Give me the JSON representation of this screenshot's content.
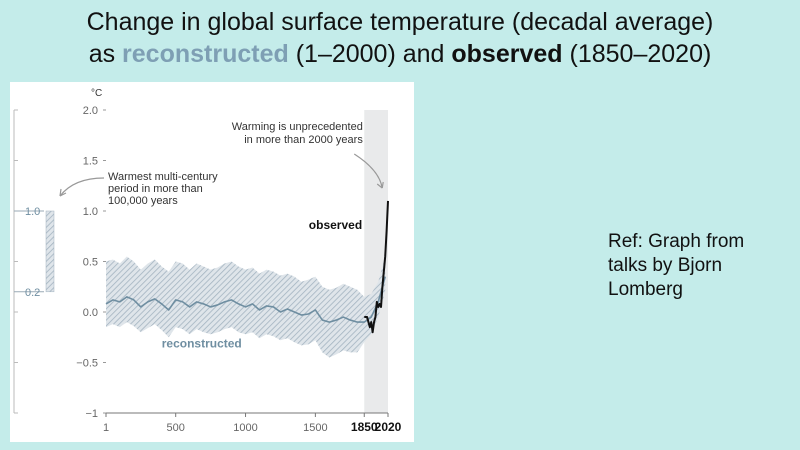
{
  "slide": {
    "title_line1": "Change in global surface temperature (decadal average)",
    "title_line2_prefix": "as ",
    "title_reconstructed": "reconstructed",
    "title_line2_mid": " (1–2000) and ",
    "title_observed": "observed",
    "title_line2_suffix": " (1850–2020)",
    "reference": "Ref: Graph from talks by Bjorn Lomberg"
  },
  "colors": {
    "background": "#c4ecea",
    "reconstructed": "#6f8ea1",
    "band": "#a9b8c4",
    "observed": "#111111",
    "recent_shade": "#e9eaeb",
    "axis_text": "#666666"
  },
  "chart_data": {
    "type": "line",
    "ylabel": "°C",
    "ylim": [
      -1,
      2
    ],
    "xlim": [
      1,
      2020
    ],
    "ytick_labels": [
      "2.0",
      "1.5",
      "1.0",
      "0.5",
      "0.0",
      "−0.5",
      "−1"
    ],
    "ytick_values": [
      2.0,
      1.5,
      1.0,
      0.5,
      0.0,
      -0.5,
      -1
    ],
    "xtick_labels": [
      "1",
      "500",
      "1000",
      "1500",
      "1850",
      "2020"
    ],
    "xtick_values": [
      1,
      500,
      1000,
      1500,
      1850,
      2020
    ],
    "bold_xticks": [
      "1850",
      "2020"
    ],
    "shaded_period": [
      1850,
      2020
    ],
    "series": [
      {
        "name": "reconstructed",
        "x": [
          1,
          50,
          100,
          150,
          200,
          250,
          300,
          350,
          400,
          450,
          500,
          550,
          600,
          650,
          700,
          750,
          800,
          850,
          900,
          950,
          1000,
          1050,
          1100,
          1150,
          1200,
          1250,
          1300,
          1350,
          1400,
          1450,
          1500,
          1550,
          1600,
          1650,
          1700,
          1750,
          1800,
          1850,
          1900,
          1950,
          2000
        ],
        "values": [
          0.08,
          0.12,
          0.1,
          0.15,
          0.12,
          0.05,
          0.1,
          0.13,
          0.08,
          0.02,
          0.12,
          0.1,
          0.05,
          0.1,
          0.08,
          0.05,
          0.07,
          0.1,
          0.12,
          0.08,
          0.05,
          0.08,
          0.02,
          0.06,
          0.05,
          0.0,
          0.03,
          0.0,
          -0.03,
          -0.02,
          0.02,
          -0.08,
          -0.1,
          -0.08,
          -0.05,
          -0.08,
          -0.1,
          -0.1,
          -0.05,
          0.1,
          0.35
        ],
        "lower": [
          -0.15,
          -0.12,
          -0.15,
          -0.1,
          -0.14,
          -0.2,
          -0.16,
          -0.12,
          -0.18,
          -0.25,
          -0.15,
          -0.17,
          -0.22,
          -0.17,
          -0.2,
          -0.22,
          -0.2,
          -0.17,
          -0.15,
          -0.2,
          -0.22,
          -0.2,
          -0.26,
          -0.22,
          -0.24,
          -0.28,
          -0.26,
          -0.3,
          -0.33,
          -0.32,
          -0.28,
          -0.4,
          -0.45,
          -0.42,
          -0.38,
          -0.4,
          -0.4,
          -0.3,
          -0.22,
          -0.05,
          0.2
        ],
        "upper": [
          0.5,
          0.52,
          0.48,
          0.55,
          0.5,
          0.42,
          0.48,
          0.52,
          0.45,
          0.4,
          0.5,
          0.48,
          0.42,
          0.48,
          0.45,
          0.42,
          0.44,
          0.48,
          0.5,
          0.45,
          0.42,
          0.44,
          0.38,
          0.42,
          0.4,
          0.36,
          0.38,
          0.35,
          0.3,
          0.32,
          0.35,
          0.25,
          0.22,
          0.24,
          0.28,
          0.25,
          0.22,
          0.15,
          0.18,
          0.3,
          0.55
        ]
      },
      {
        "name": "observed",
        "x": [
          1850,
          1870,
          1890,
          1900,
          1910,
          1920,
          1930,
          1940,
          1950,
          1960,
          1970,
          1980,
          1990,
          2000,
          2010,
          2020
        ],
        "values": [
          -0.05,
          -0.05,
          -0.15,
          -0.1,
          -0.2,
          -0.1,
          -0.05,
          0.1,
          0.05,
          0.08,
          0.05,
          0.25,
          0.4,
          0.55,
          0.8,
          1.1
        ]
      }
    ],
    "series_labels": {
      "reconstructed": "reconstructed",
      "observed": "observed"
    },
    "range_bar": {
      "lower": 0.2,
      "upper": 1.0,
      "lower_label": "0.2",
      "upper_label": "1.0"
    },
    "annotations": {
      "unprecedented": [
        "Warming is unprecedented",
        "in more than 2000 years"
      ],
      "warmest": [
        "Warmest multi-century",
        "period in more than",
        "100,000 years"
      ]
    }
  }
}
